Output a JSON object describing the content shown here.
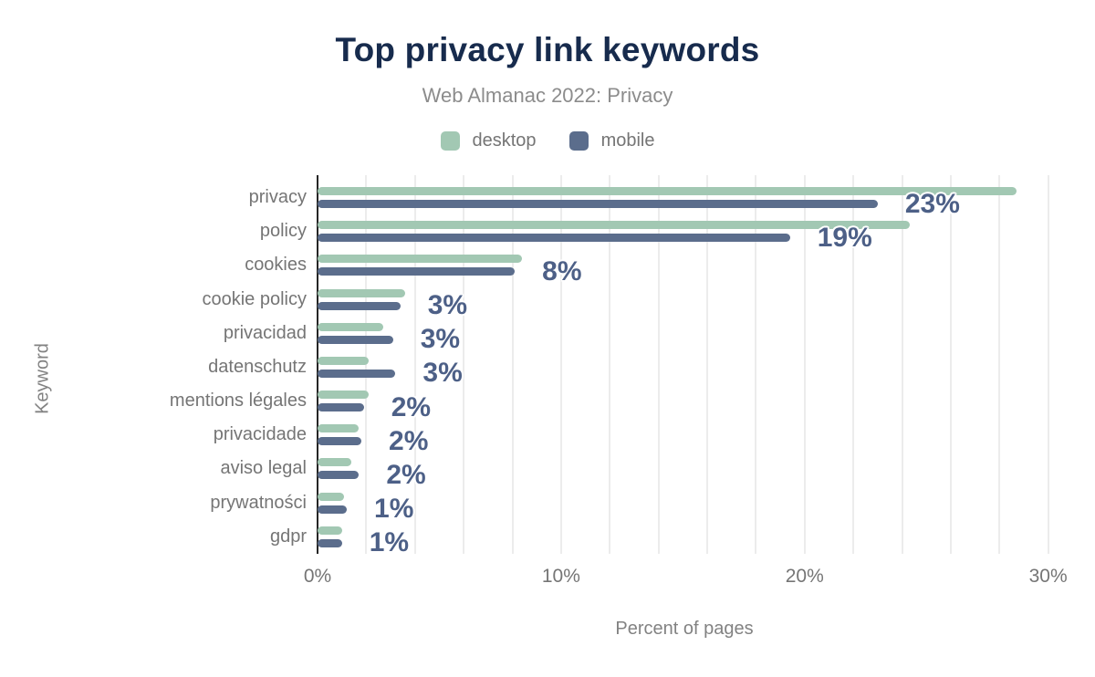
{
  "header": {
    "title": "Top privacy link keywords",
    "subtitle": "Web Almanac 2022: Privacy"
  },
  "chart_data": {
    "type": "bar",
    "orientation": "horizontal",
    "title": "Top privacy link keywords",
    "subtitle": "Web Almanac 2022: Privacy",
    "xlabel": "Percent of pages",
    "ylabel": "Keyword",
    "categories": [
      "privacy",
      "policy",
      "cookies",
      "cookie policy",
      "privacidad",
      "datenschutz",
      "mentions légales",
      "privacidade",
      "aviso legal",
      "prywatności",
      "gdpr"
    ],
    "series": [
      {
        "name": "desktop",
        "color": "#a2c8b3",
        "values": [
          28.7,
          24.3,
          8.4,
          3.6,
          2.7,
          2.1,
          2.1,
          1.7,
          1.4,
          1.1,
          1.0
        ]
      },
      {
        "name": "mobile",
        "color": "#5b6d8c",
        "values": [
          23.0,
          19.4,
          8.1,
          3.4,
          3.1,
          3.2,
          1.9,
          1.8,
          1.7,
          1.2,
          1.0
        ]
      }
    ],
    "data_labels": {
      "labels": [
        "23%",
        "19%",
        "8%",
        "3%",
        "3%",
        "3%",
        "2%",
        "2%",
        "2%",
        "1%",
        "1%"
      ],
      "labeled_series": "mobile"
    },
    "x_ticks": [
      {
        "label": "0%",
        "value": 0
      },
      {
        "label": "10%",
        "value": 10
      },
      {
        "label": "20%",
        "value": 20
      },
      {
        "label": "30%",
        "value": 30
      }
    ],
    "xlim": [
      0,
      30.8
    ],
    "gridline_step_percent": 2,
    "grid": true,
    "legend_position": "top"
  },
  "colors": {
    "title_text": "#172b4d",
    "subtitle_text": "#8c8c8c",
    "axis_text": "#757575",
    "axis_title_text": "#828282",
    "desktop_bar": "#a2c8b3",
    "mobile_bar": "#5b6d8c",
    "data_label_text": "#4d6087",
    "gridline": "#ececec",
    "axis_line": "#262626",
    "background": "#ffffff"
  }
}
